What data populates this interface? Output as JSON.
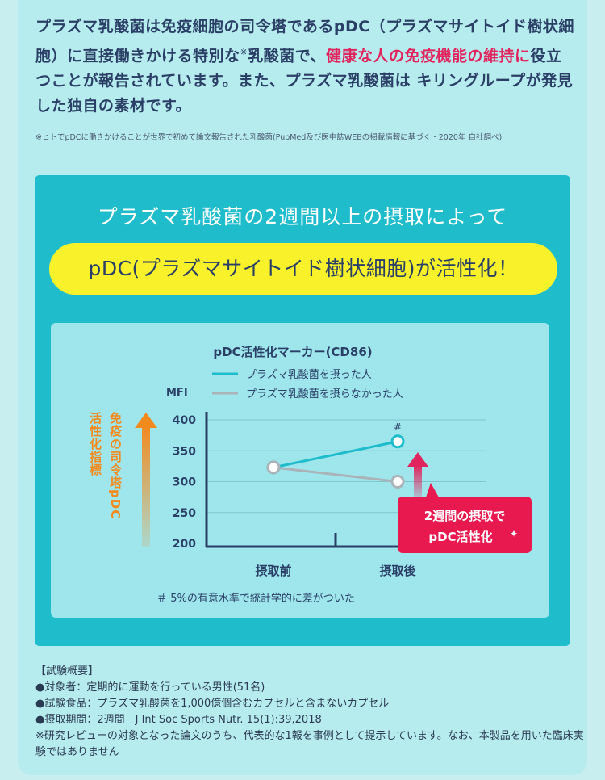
{
  "intro": {
    "p1": "プラズマ乳酸菌は免疫細胞の司令塔であるpDC（プラズマサイトイド樹状細胞）に直接働きかける特別な",
    "mark": "※",
    "p2": "乳酸菌で、",
    "highlight": "健康な人の免疫機能の維持に",
    "p3": "役立つことが報告されています。また、プラズマ乳酸菌は キリングループが発見した独自の素材です。"
  },
  "footnote": "※ヒトでpDCに働きかけることが世界で初めて論文報告された乳酸菌(PubMed及び医中誌WEBの掲載情報に基づく・2020年 自社調べ)",
  "panel": {
    "title": "プラズマ乳酸菌の2週間以上の摂取によって",
    "pill": "pDC(プラズマサイトイド樹状細胞)が活性化！"
  },
  "chart_data": {
    "type": "line",
    "title": "pDC活性化マーカー(CD86)",
    "ylabel": "MFI",
    "side_label": "免疫の司令塔pDC活性化指標",
    "categories": [
      "摂取前",
      "摂取後"
    ],
    "ylim": [
      200,
      400
    ],
    "yticks": [
      200,
      250,
      300,
      350,
      400
    ],
    "grid": true,
    "legend_position": "top",
    "series": [
      {
        "name": "プラズマ乳酸菌を摂った人",
        "values": [
          323,
          365
        ],
        "color": "#1fbccc"
      },
      {
        "name": "プラズマ乳酸菌を摂らなかった人",
        "values": [
          323,
          300
        ],
        "color": "#aab3b8"
      }
    ],
    "annotation_mark": "#",
    "callout_lines": [
      "2週間の摂取で",
      "pDC活性化"
    ],
    "callout_star": "✦",
    "significance_note": "＃ 5%の有意水準で統計学的に差がついた",
    "colors": {
      "axis": "#2a3f66",
      "arrow_orange": "#f38a1e",
      "arrow_red": "#e0245e",
      "callout_bg": "#e8194f"
    }
  },
  "trial": {
    "heading": "【試験概要】",
    "lines": [
      "●対象者：定期的に運動を行っている男性(51名)",
      "●試験食品：プラズマ乳酸菌を1,000億個含むカプセルと含まないカプセル",
      "●摂取期間：2週間　J Int Soc Sports Nutr. 15(1):39,2018"
    ],
    "note": "※研究レビューの対象となった論文のうち、代表的な1報を事例として提示しています。なお、本製品を用いた臨床実験ではありません"
  }
}
